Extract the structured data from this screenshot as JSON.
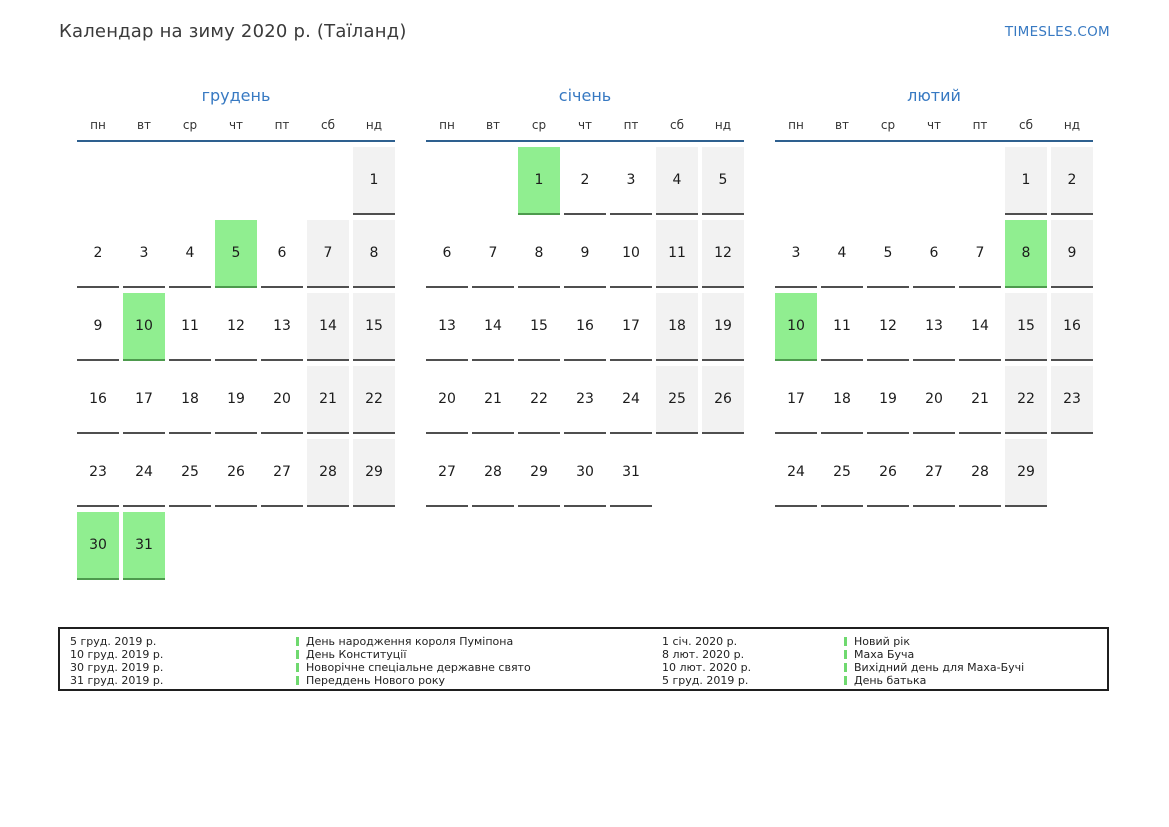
{
  "header": {
    "title": "Календар на зиму 2020 р. (Таїланд)",
    "site": "TIMESLES.COM"
  },
  "weekdays": [
    "пн",
    "вт",
    "ср",
    "чт",
    "пт",
    "сб",
    "нд"
  ],
  "months": [
    {
      "name": "грудень",
      "weeks": [
        [
          null,
          null,
          null,
          null,
          null,
          null,
          {
            "d": 1,
            "t": "w"
          }
        ],
        [
          {
            "d": 2
          },
          {
            "d": 3
          },
          {
            "d": 4
          },
          {
            "d": 5,
            "t": "h"
          },
          {
            "d": 6
          },
          {
            "d": 7,
            "t": "w"
          },
          {
            "d": 8,
            "t": "w"
          }
        ],
        [
          {
            "d": 9
          },
          {
            "d": 10,
            "t": "h"
          },
          {
            "d": 11
          },
          {
            "d": 12
          },
          {
            "d": 13
          },
          {
            "d": 14,
            "t": "w"
          },
          {
            "d": 15,
            "t": "w"
          }
        ],
        [
          {
            "d": 16
          },
          {
            "d": 17
          },
          {
            "d": 18
          },
          {
            "d": 19
          },
          {
            "d": 20
          },
          {
            "d": 21,
            "t": "w"
          },
          {
            "d": 22,
            "t": "w"
          }
        ],
        [
          {
            "d": 23
          },
          {
            "d": 24
          },
          {
            "d": 25
          },
          {
            "d": 26
          },
          {
            "d": 27
          },
          {
            "d": 28,
            "t": "w"
          },
          {
            "d": 29,
            "t": "w"
          }
        ],
        [
          {
            "d": 30,
            "t": "h"
          },
          {
            "d": 31,
            "t": "h"
          },
          null,
          null,
          null,
          null,
          null
        ]
      ]
    },
    {
      "name": "січень",
      "weeks": [
        [
          null,
          null,
          {
            "d": 1,
            "t": "h"
          },
          {
            "d": 2
          },
          {
            "d": 3
          },
          {
            "d": 4,
            "t": "w"
          },
          {
            "d": 5,
            "t": "w"
          }
        ],
        [
          {
            "d": 6
          },
          {
            "d": 7
          },
          {
            "d": 8
          },
          {
            "d": 9
          },
          {
            "d": 10
          },
          {
            "d": 11,
            "t": "w"
          },
          {
            "d": 12,
            "t": "w"
          }
        ],
        [
          {
            "d": 13
          },
          {
            "d": 14
          },
          {
            "d": 15
          },
          {
            "d": 16
          },
          {
            "d": 17
          },
          {
            "d": 18,
            "t": "w"
          },
          {
            "d": 19,
            "t": "w"
          }
        ],
        [
          {
            "d": 20
          },
          {
            "d": 21
          },
          {
            "d": 22
          },
          {
            "d": 23
          },
          {
            "d": 24
          },
          {
            "d": 25,
            "t": "w"
          },
          {
            "d": 26,
            "t": "w"
          }
        ],
        [
          {
            "d": 27
          },
          {
            "d": 28
          },
          {
            "d": 29
          },
          {
            "d": 30
          },
          {
            "d": 31
          },
          null,
          null
        ]
      ]
    },
    {
      "name": "лютий",
      "weeks": [
        [
          null,
          null,
          null,
          null,
          null,
          {
            "d": 1,
            "t": "w"
          },
          {
            "d": 2,
            "t": "w"
          }
        ],
        [
          {
            "d": 3
          },
          {
            "d": 4
          },
          {
            "d": 5
          },
          {
            "d": 6
          },
          {
            "d": 7
          },
          {
            "d": 8,
            "t": "h"
          },
          {
            "d": 9,
            "t": "w"
          }
        ],
        [
          {
            "d": 10,
            "t": "h"
          },
          {
            "d": 11
          },
          {
            "d": 12
          },
          {
            "d": 13
          },
          {
            "d": 14
          },
          {
            "d": 15,
            "t": "w"
          },
          {
            "d": 16,
            "t": "w"
          }
        ],
        [
          {
            "d": 17
          },
          {
            "d": 18
          },
          {
            "d": 19
          },
          {
            "d": 20
          },
          {
            "d": 21
          },
          {
            "d": 22,
            "t": "w"
          },
          {
            "d": 23,
            "t": "w"
          }
        ],
        [
          {
            "d": 24
          },
          {
            "d": 25
          },
          {
            "d": 26
          },
          {
            "d": 27
          },
          {
            "d": 28
          },
          {
            "d": 29,
            "t": "w"
          },
          null
        ]
      ]
    }
  ],
  "legend": {
    "groups": [
      {
        "items": [
          {
            "date": "5 груд. 2019 р.",
            "name": "День народження короля Пуміпона"
          },
          {
            "date": "10 груд. 2019 р.",
            "name": "День Конституції"
          },
          {
            "date": "30 груд. 2019 р.",
            "name": "Новорічне спеціальне державне свято"
          },
          {
            "date": "31 груд. 2019 р.",
            "name": "Переддень Нового року"
          }
        ]
      },
      {
        "items": [
          {
            "date": "1 січ. 2020 р.",
            "name": "Новий рік"
          },
          {
            "date": "8 лют. 2020 р.",
            "name": "Маха Буча"
          },
          {
            "date": "10 лют. 2020 р.",
            "name": "Вихідний день для Маха-Бучі"
          },
          {
            "date": "5 груд. 2019 р.",
            "name": "День батька"
          }
        ]
      }
    ]
  },
  "colors": {
    "holiday_green": "#90ee90",
    "weekend_gray": "#f2f2f2",
    "accent_blue": "#3779c2",
    "rule_blue": "#2e608f",
    "legend_bar_green": "#6fd96f"
  }
}
